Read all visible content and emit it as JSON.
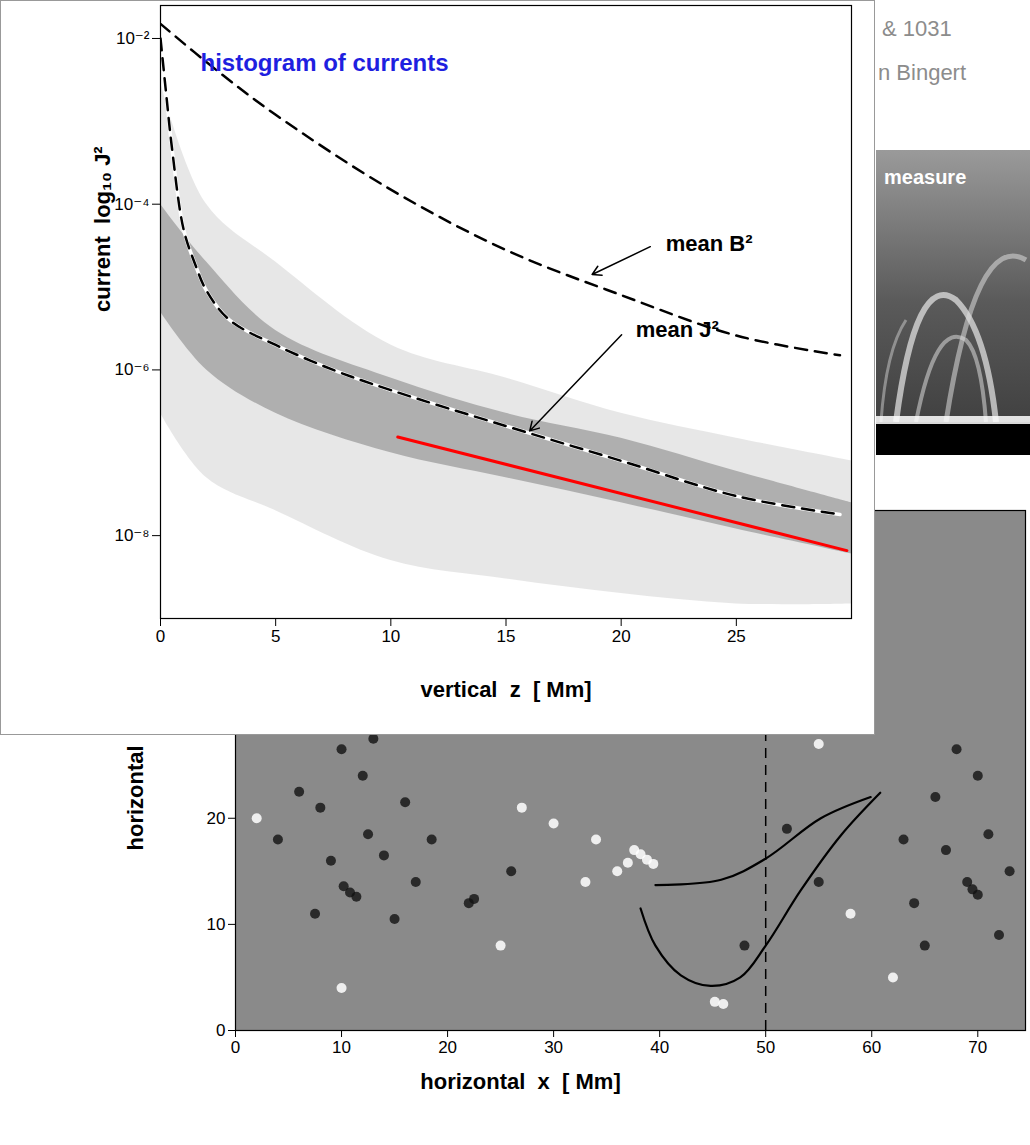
{
  "page_texts": {
    "header_lines": [
      "& 1031",
      "n Bingert"
    ],
    "image_label": "measure"
  },
  "chart_data": [
    {
      "type": "line",
      "title": "histogram of currents",
      "xlabel": "vertical  z  [ Mm]",
      "ylabel": "current  log₁₀ J²",
      "log": "y",
      "xlim": [
        0,
        30
      ],
      "xticks": [
        0,
        5,
        10,
        15,
        20,
        25
      ],
      "ylim": [
        1e-09,
        0.025
      ],
      "yticks": [
        {
          "value": 0.01,
          "label": "10⁻²"
        },
        {
          "value": 0.0001,
          "label": "10⁻⁴"
        },
        {
          "value": 1e-06,
          "label": "10⁻⁶"
        },
        {
          "value": 1e-08,
          "label": "10⁻⁸"
        }
      ],
      "histogram": {
        "bands": [
          {
            "color": "#e4e4e4",
            "x": [
              0,
              2,
              5,
              10,
              15,
              20,
              25,
              30
            ],
            "lower": [
              3e-07,
              5e-08,
              2e-08,
              5e-09,
              3e-09,
              2e-09,
              1.5e-09,
              1.5e-09
            ],
            "upper": [
              0.003,
              0.0001,
              2e-05,
              2e-06,
              8e-07,
              3e-07,
              1.5e-07,
              8e-08
            ]
          },
          {
            "color": "#a8a8a8",
            "x": [
              0,
              2,
              5,
              10,
              15,
              20,
              25,
              30
            ],
            "lower": [
              5e-06,
              1e-06,
              3e-07,
              1e-07,
              5e-08,
              2.5e-08,
              1.2e-08,
              6e-09
            ],
            "upper": [
              0.0001,
              2e-05,
              3e-06,
              8e-07,
              3e-07,
              1.5e-07,
              6e-08,
              2.5e-08
            ]
          }
        ]
      },
      "series": [
        {
          "name": "mean B²",
          "color": "#000000",
          "line_style": "dashed",
          "x": [
            0,
            2.5,
            5,
            10,
            15,
            20,
            25,
            29.5
          ],
          "values": [
            0.015,
            0.004,
            0.0012,
            0.00015,
            2.8e-05,
            8e-06,
            2.6e-06,
            1.5e-06
          ],
          "label_at": [
            21.5,
            3.3e-05
          ],
          "arrow_to": [
            18.7,
            1.4e-05
          ]
        },
        {
          "name": "mean J²",
          "color": "#000000",
          "line_style": "dashed",
          "x": [
            0,
            0.25,
            0.5,
            1,
            1.5,
            2,
            3,
            5,
            7.5,
            10,
            15,
            20,
            25,
            29.5
          ],
          "values": [
            0.01,
            0.0021,
            0.00047,
            5e-05,
            1.9e-05,
            9e-06,
            4e-06,
            2e-06,
            1e-06,
            5.7e-07,
            2.1e-07,
            8e-08,
            3e-08,
            1.8e-08
          ],
          "label_at": [
            20.2,
            3e-06
          ],
          "arrow_to": [
            16,
            1.8e-07
          ]
        },
        {
          "color": "#ff0000",
          "line_style": "solid",
          "x": [
            10.3,
            29.8
          ],
          "values": [
            1.55e-07,
            6.6e-09
          ]
        }
      ]
    },
    {
      "type": "magnetogram",
      "xlabel": "horizontal  x  [ Mm]",
      "ylabel": "horizontal  y",
      "xlim": [
        0,
        74.5
      ],
      "xticks": [
        0,
        10,
        20,
        30,
        40,
        50,
        60,
        70
      ],
      "ylim": [
        0,
        49
      ],
      "yticks": [
        0,
        10,
        20
      ],
      "color": "#8a8a8a",
      "patches": [
        {
          "x": 10.8,
          "y": 13,
          "sign": -1
        },
        {
          "x": 11.4,
          "y": 12.6,
          "sign": -1
        },
        {
          "x": 10.2,
          "y": 13.6,
          "sign": -1
        },
        {
          "x": 9,
          "y": 16,
          "sign": -1
        },
        {
          "x": 12.5,
          "y": 18.5,
          "sign": -1
        },
        {
          "x": 8,
          "y": 21,
          "sign": -1
        },
        {
          "x": 12,
          "y": 24,
          "sign": -1
        },
        {
          "x": 15,
          "y": 10.5,
          "sign": -1
        },
        {
          "x": 14,
          "y": 16.5,
          "sign": -1
        },
        {
          "x": 6,
          "y": 22.5,
          "sign": -1
        },
        {
          "x": 10,
          "y": 26.5,
          "sign": -1
        },
        {
          "x": 17,
          "y": 14,
          "sign": -1
        },
        {
          "x": 18.5,
          "y": 18,
          "sign": -1
        },
        {
          "x": 7.5,
          "y": 11,
          "sign": -1
        },
        {
          "x": 16,
          "y": 21.5,
          "sign": -1
        },
        {
          "x": 13,
          "y": 27.5,
          "sign": -1
        },
        {
          "x": 4,
          "y": 18,
          "sign": -1
        },
        {
          "x": 22,
          "y": 12,
          "sign": -1
        },
        {
          "x": 22.5,
          "y": 12.4,
          "sign": -1
        },
        {
          "x": 26,
          "y": 15,
          "sign": -1
        },
        {
          "x": 69.5,
          "y": 13.3,
          "sign": -1
        },
        {
          "x": 70,
          "y": 12.8,
          "sign": -1
        },
        {
          "x": 69,
          "y": 14,
          "sign": -1
        },
        {
          "x": 67,
          "y": 17,
          "sign": -1
        },
        {
          "x": 71,
          "y": 18.5,
          "sign": -1
        },
        {
          "x": 66,
          "y": 22,
          "sign": -1
        },
        {
          "x": 70,
          "y": 24,
          "sign": -1
        },
        {
          "x": 64,
          "y": 12,
          "sign": -1
        },
        {
          "x": 72,
          "y": 9,
          "sign": -1
        },
        {
          "x": 68,
          "y": 26.5,
          "sign": -1
        },
        {
          "x": 65,
          "y": 8,
          "sign": -1
        },
        {
          "x": 73,
          "y": 15,
          "sign": -1
        },
        {
          "x": 63,
          "y": 18,
          "sign": -1
        },
        {
          "x": 52,
          "y": 19,
          "sign": -1
        },
        {
          "x": 55,
          "y": 14,
          "sign": -1
        },
        {
          "x": 48,
          "y": 8,
          "sign": -1
        },
        {
          "x": 38.2,
          "y": 16.6,
          "sign": 1
        },
        {
          "x": 38.8,
          "y": 16.1,
          "sign": 1
        },
        {
          "x": 37.6,
          "y": 17,
          "sign": 1
        },
        {
          "x": 39.4,
          "y": 15.7,
          "sign": 1
        },
        {
          "x": 37,
          "y": 15.8,
          "sign": 1
        },
        {
          "x": 36,
          "y": 15,
          "sign": 1
        },
        {
          "x": 34,
          "y": 18,
          "sign": 1
        },
        {
          "x": 33,
          "y": 14,
          "sign": 1
        },
        {
          "x": 30,
          "y": 19.5,
          "sign": 1
        },
        {
          "x": 27,
          "y": 21,
          "sign": 1
        },
        {
          "x": 46,
          "y": 2.5,
          "sign": 1
        },
        {
          "x": 45.2,
          "y": 2.7,
          "sign": 1
        },
        {
          "x": 55,
          "y": 27,
          "sign": 1
        },
        {
          "x": 62,
          "y": 5,
          "sign": 1
        },
        {
          "x": 10,
          "y": 4,
          "sign": 1
        },
        {
          "x": 25,
          "y": 8,
          "sign": 1
        },
        {
          "x": 58,
          "y": 11,
          "sign": 1
        },
        {
          "x": 2,
          "y": 20,
          "sign": 1
        }
      ],
      "field_lines": [
        {
          "color": "#000000",
          "x": [
            39.6,
            45.8,
            50,
            55.2,
            59.9
          ],
          "y": [
            13.7,
            14.2,
            16.2,
            20,
            22
          ]
        },
        {
          "color": "#000000",
          "x": [
            38.2,
            39.6,
            42,
            44.8,
            47.6,
            50,
            53.3,
            57.1,
            60.8
          ],
          "y": [
            11.5,
            8,
            5.2,
            4.2,
            5,
            8,
            13.2,
            18.4,
            22.4
          ]
        }
      ],
      "rules": [
        {
          "x": 50,
          "line_style": "dashed"
        }
      ]
    }
  ]
}
